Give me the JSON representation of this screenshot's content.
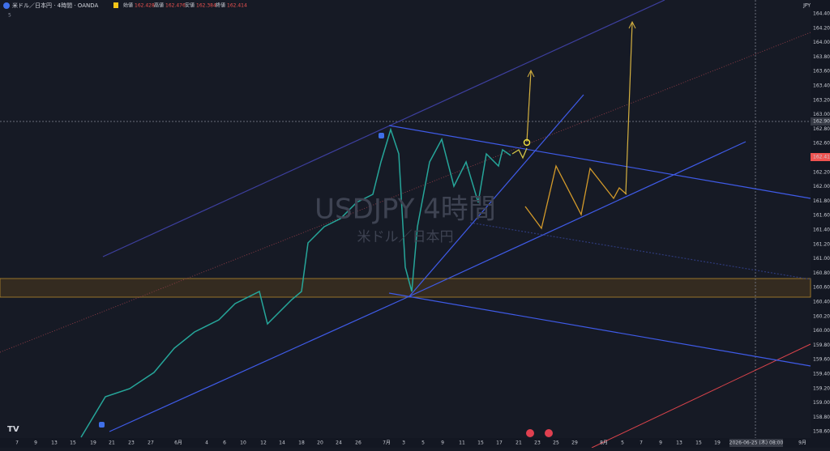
{
  "header": {
    "symbol": "米ドル／日本円 · 4時間 · OANDA",
    "ohlc": [
      {
        "label": "始値",
        "value": "162.428"
      },
      {
        "label": "高値",
        "value": "162.476"
      },
      {
        "label": "安値",
        "value": "162.384"
      },
      {
        "label": "終値",
        "value": "162.414"
      }
    ],
    "currency": "JPY",
    "interval_hint": "5"
  },
  "watermark": {
    "title": "USDJPY 4時間",
    "subtitle": "米ドル／日本円"
  },
  "price_axis": {
    "labels": [
      "164.400",
      "164.200",
      "164.000",
      "163.800",
      "163.600",
      "163.400",
      "163.200",
      "163.000",
      "162.800",
      "162.600",
      "162.400",
      "162.200",
      "162.000",
      "161.800",
      "161.600",
      "161.400",
      "161.200",
      "161.000",
      "160.800",
      "160.600",
      "160.400",
      "160.200",
      "160.000",
      "159.800",
      "159.600",
      "159.400",
      "159.200",
      "159.000",
      "158.800",
      "158.600"
    ],
    "crosshair_price": "162.903",
    "last_price": "162.414"
  },
  "time_axis": {
    "labels": [
      "7",
      "9",
      "13",
      "15",
      "19",
      "21",
      "23",
      "27",
      "6月",
      "4",
      "6",
      "10",
      "12",
      "14",
      "18",
      "20",
      "24",
      "26",
      "7月",
      "3",
      "5",
      "9",
      "11",
      "15",
      "17",
      "21",
      "23",
      "25",
      "29",
      "8月",
      "5",
      "7",
      "9",
      "13",
      "15",
      "19",
      "9月"
    ],
    "crosshair_time": "2026-06-25 (木) 08:00"
  }
}
